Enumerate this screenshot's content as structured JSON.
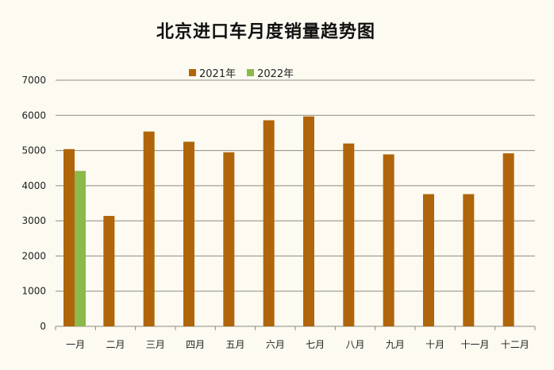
{
  "chart_data": {
    "type": "bar",
    "title": "北京进口车月度销量趋势图",
    "categories": [
      "一月",
      "二月",
      "三月",
      "四月",
      "五月",
      "六月",
      "七月",
      "八月",
      "九月",
      "十月",
      "十一月",
      "十二月"
    ],
    "series": [
      {
        "name": "2021年",
        "color": "#b0650a",
        "values": [
          5040,
          3140,
          5540,
          5250,
          4950,
          5860,
          5970,
          5200,
          4890,
          3760,
          3760,
          4920
        ]
      },
      {
        "name": "2022年",
        "color": "#8db84a",
        "values": [
          4420,
          null,
          null,
          null,
          null,
          null,
          null,
          null,
          null,
          null,
          null,
          null
        ]
      }
    ],
    "ylim": [
      0,
      7000
    ],
    "yticks": [
      0,
      1000,
      2000,
      3000,
      4000,
      5000,
      6000,
      7000
    ],
    "xlabel": "",
    "ylabel": "",
    "grid": true,
    "legend_position": "top"
  }
}
